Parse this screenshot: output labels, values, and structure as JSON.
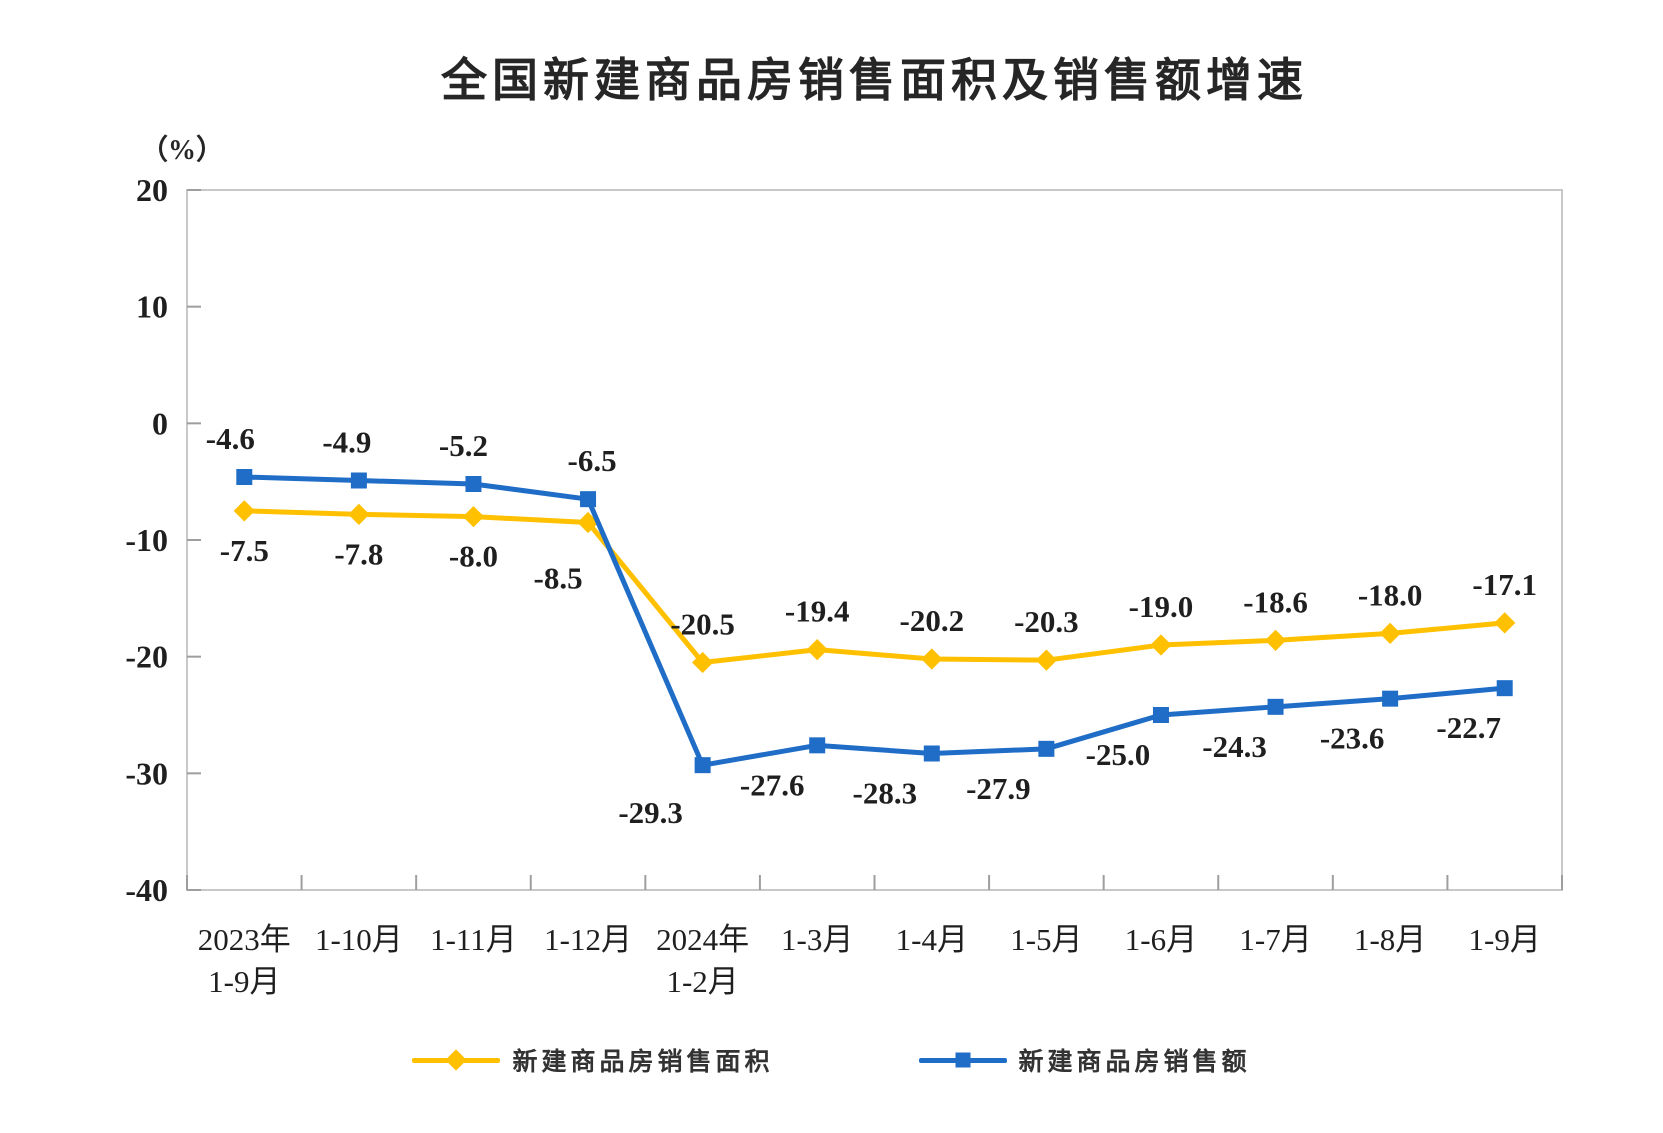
{
  "page": {
    "background": "#ffffff"
  },
  "chart_data": {
    "type": "line",
    "title": "全国新建商品房销售面积及销售额增速",
    "unit_label": "（%）",
    "categories": [
      [
        "2023年",
        "1-9月"
      ],
      [
        "1-10月"
      ],
      [
        "1-11月"
      ],
      [
        "1-12月"
      ],
      [
        "2024年",
        "1-2月"
      ],
      [
        "1-3月"
      ],
      [
        "1-4月"
      ],
      [
        "1-5月"
      ],
      [
        "1-6月"
      ],
      [
        "1-7月"
      ],
      [
        "1-8月"
      ],
      [
        "1-9月"
      ]
    ],
    "ylim": [
      -40,
      20
    ],
    "yticks": [
      20,
      10,
      0,
      -10,
      -20,
      -30,
      -40
    ],
    "grid": false,
    "legend_position": "bottom",
    "series": [
      {
        "name": "新建商品房销售面积",
        "color": "#FFC000",
        "marker": "diamond",
        "values": [
          -7.5,
          -7.8,
          -8.0,
          -8.5,
          -20.5,
          -19.4,
          -20.2,
          -20.3,
          -19.0,
          -18.6,
          -18.0,
          -17.1
        ],
        "label_sides": [
          "below",
          "below",
          "below",
          "below",
          "above",
          "above",
          "above",
          "above",
          "above",
          "above",
          "above",
          "above"
        ],
        "label_dx": [
          0,
          0,
          0,
          -30,
          0,
          0,
          0,
          0,
          0,
          0,
          0,
          0
        ],
        "label_dy": [
          0,
          0,
          0,
          16,
          0,
          0,
          0,
          0,
          0,
          0,
          0,
          0
        ]
      },
      {
        "name": "新建商品房销售额",
        "color": "#1F6DC6",
        "marker": "square",
        "values": [
          -4.6,
          -4.9,
          -5.2,
          -6.5,
          -29.3,
          -27.6,
          -28.3,
          -27.9,
          -25.0,
          -24.3,
          -23.6,
          -22.7
        ],
        "label_sides": [
          "above",
          "above",
          "above",
          "above",
          "below",
          "below",
          "below",
          "below",
          "below",
          "below",
          "below",
          "below"
        ],
        "label_dx": [
          -14,
          -12,
          -10,
          4,
          -52,
          -45,
          -47,
          -48,
          -43,
          -41,
          -38,
          -36
        ],
        "label_dy": [
          0,
          0,
          0,
          0,
          8,
          0,
          0,
          0,
          0,
          0,
          0,
          0
        ]
      }
    ],
    "axis_color": "#c8c8c8",
    "tick_color": "#9e9e9e",
    "text_color": "#1f1f1f"
  }
}
